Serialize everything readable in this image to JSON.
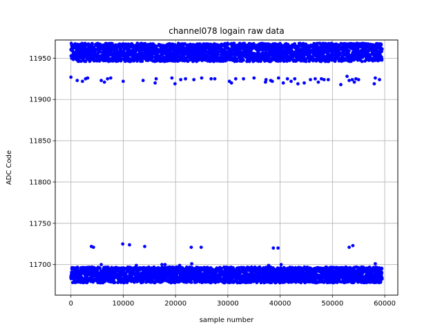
{
  "chart_data": {
    "type": "scatter",
    "title": "channel078 logain raw data",
    "xlabel": "sample number",
    "ylabel": "ADC Code",
    "xlim": [
      -3000,
      62500
    ],
    "ylim": [
      11663,
      11972
    ],
    "xticks": [
      0,
      10000,
      20000,
      30000,
      40000,
      50000,
      60000
    ],
    "yticks": [
      11700,
      11750,
      11800,
      11850,
      11900,
      11950
    ],
    "grid": true,
    "marker_color": "#0000ff",
    "x_range": [
      0,
      59500
    ],
    "bands": [
      {
        "y_low": 11946,
        "y_high": 11968
      },
      {
        "y_low": 11678,
        "y_high": 11697
      }
    ],
    "outliers_upper": [
      [
        0,
        11927
      ],
      [
        1200,
        11923
      ],
      [
        2200,
        11922
      ],
      [
        2800,
        11925
      ],
      [
        3200,
        11926
      ],
      [
        5800,
        11923
      ],
      [
        6400,
        11921
      ],
      [
        7000,
        11925
      ],
      [
        7600,
        11926
      ],
      [
        10000,
        11922
      ],
      [
        13800,
        11923
      ],
      [
        16100,
        11920
      ],
      [
        16300,
        11925
      ],
      [
        19300,
        11926
      ],
      [
        19900,
        11919
      ],
      [
        21000,
        11924
      ],
      [
        21900,
        11925
      ],
      [
        23500,
        11924
      ],
      [
        25000,
        11926
      ],
      [
        26800,
        11925
      ],
      [
        27500,
        11925
      ],
      [
        30300,
        11922
      ],
      [
        30700,
        11920
      ],
      [
        31500,
        11925
      ],
      [
        33000,
        11925
      ],
      [
        35000,
        11926
      ],
      [
        37200,
        11921
      ],
      [
        37300,
        11924
      ],
      [
        38200,
        11923
      ],
      [
        38500,
        11922
      ],
      [
        39700,
        11926
      ],
      [
        40600,
        11920
      ],
      [
        41400,
        11925
      ],
      [
        42100,
        11922
      ],
      [
        42800,
        11925
      ],
      [
        43400,
        11919
      ],
      [
        44600,
        11920
      ],
      [
        45800,
        11924
      ],
      [
        46700,
        11925
      ],
      [
        47300,
        11921
      ],
      [
        47900,
        11925
      ],
      [
        48400,
        11924
      ],
      [
        49200,
        11924
      ],
      [
        51600,
        11918
      ],
      [
        52800,
        11928
      ],
      [
        53200,
        11923
      ],
      [
        53800,
        11924
      ],
      [
        54200,
        11921
      ],
      [
        54500,
        11925
      ],
      [
        55000,
        11924
      ],
      [
        58000,
        11919
      ],
      [
        58200,
        11926
      ],
      [
        59000,
        11924
      ]
    ],
    "outliers_lower": [
      [
        3900,
        11722
      ],
      [
        4300,
        11721
      ],
      [
        9900,
        11725
      ],
      [
        11200,
        11724
      ],
      [
        14100,
        11722
      ],
      [
        23000,
        11721
      ],
      [
        24900,
        11721
      ],
      [
        38700,
        11720
      ],
      [
        39600,
        11720
      ],
      [
        53200,
        11721
      ],
      [
        53900,
        11723
      ],
      [
        5800,
        11700
      ],
      [
        12500,
        11699
      ],
      [
        17400,
        11700
      ],
      [
        18000,
        11700
      ],
      [
        20800,
        11699
      ],
      [
        23100,
        11701
      ],
      [
        37800,
        11699
      ],
      [
        40200,
        11700
      ],
      [
        58200,
        11701
      ]
    ]
  }
}
